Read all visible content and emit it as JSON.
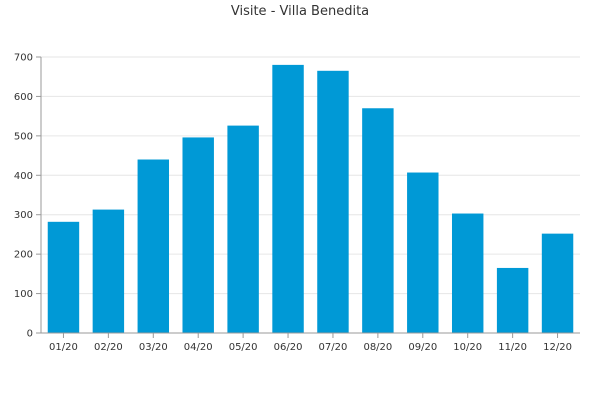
{
  "chart_data": {
    "type": "bar",
    "title": "Visite - Villa Benedita",
    "xlabel": "",
    "ylabel": "",
    "categories": [
      "01/20",
      "02/20",
      "03/20",
      "04/20",
      "05/20",
      "06/20",
      "07/20",
      "08/20",
      "09/20",
      "10/20",
      "11/20",
      "12/20"
    ],
    "values": [
      282,
      313,
      440,
      496,
      526,
      680,
      665,
      570,
      407,
      303,
      165,
      252
    ],
    "ylim": [
      0,
      700
    ],
    "yticks": [
      0,
      100,
      200,
      300,
      400,
      500,
      600,
      700
    ],
    "grid": true,
    "legend": "none",
    "colors": {
      "bar": "#0099d6",
      "grid": "#e6e6e6",
      "axis": "#999999",
      "text": "#333333"
    }
  }
}
